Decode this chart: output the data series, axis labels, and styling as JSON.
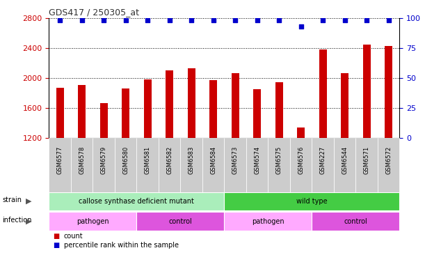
{
  "title": "GDS417 / 250305_at",
  "samples": [
    "GSM6577",
    "GSM6578",
    "GSM6579",
    "GSM6580",
    "GSM6581",
    "GSM6582",
    "GSM6583",
    "GSM6584",
    "GSM6573",
    "GSM6574",
    "GSM6575",
    "GSM6576",
    "GSM6227",
    "GSM6544",
    "GSM6571",
    "GSM6572"
  ],
  "counts": [
    1870,
    1900,
    1660,
    1860,
    1980,
    2100,
    2130,
    1970,
    2060,
    1850,
    1940,
    1340,
    2380,
    2060,
    2440,
    2420
  ],
  "percentiles": [
    98,
    98,
    98,
    98,
    98,
    98,
    98,
    98,
    98,
    98,
    98,
    93,
    98,
    98,
    98,
    98
  ],
  "ylim_left": [
    1200,
    2800
  ],
  "ylim_right": [
    0,
    100
  ],
  "yticks_left": [
    1200,
    1600,
    2000,
    2400,
    2800
  ],
  "yticks_right": [
    0,
    25,
    50,
    75,
    100
  ],
  "bar_color": "#cc0000",
  "dot_color": "#0000cc",
  "grid_color": "#000000",
  "strain_labels": [
    {
      "text": "callose synthase deficient mutant",
      "start": 0,
      "end": 8,
      "color": "#aaeebb"
    },
    {
      "text": "wild type",
      "start": 8,
      "end": 16,
      "color": "#44cc44"
    }
  ],
  "infection_labels": [
    {
      "text": "pathogen",
      "start": 0,
      "end": 4,
      "color": "#ffaaff"
    },
    {
      "text": "control",
      "start": 4,
      "end": 8,
      "color": "#dd55dd"
    },
    {
      "text": "pathogen",
      "start": 8,
      "end": 12,
      "color": "#ffaaff"
    },
    {
      "text": "control",
      "start": 12,
      "end": 16,
      "color": "#dd55dd"
    }
  ],
  "legend_items": [
    {
      "label": "count",
      "color": "#cc0000"
    },
    {
      "label": "percentile rank within the sample",
      "color": "#0000cc"
    }
  ],
  "left_axis_color": "#cc0000",
  "right_axis_color": "#0000cc",
  "bg_color": "#ffffff",
  "tick_label_bg": "#cccccc",
  "tick_label_edge": "#999999",
  "label_color": "#555555",
  "bar_width": 0.35
}
